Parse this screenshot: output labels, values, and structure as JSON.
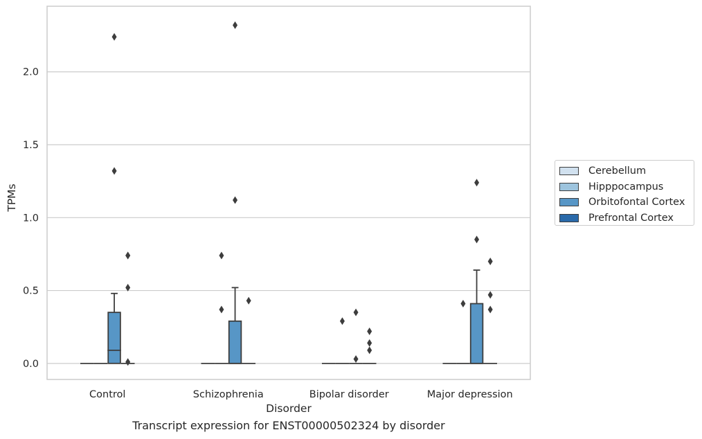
{
  "chart_data": {
    "type": "box",
    "title": "",
    "caption": "Transcript expression for ENST00000502324 by disorder",
    "xlabel": "Disorder",
    "ylabel": "TPMs",
    "ylim": [
      -0.11,
      2.45
    ],
    "yticks": [
      0.0,
      0.5,
      1.0,
      1.5,
      2.0
    ],
    "ytick_labels": [
      "0.0",
      "0.5",
      "1.0",
      "1.5",
      "2.0"
    ],
    "grid": "horizontal",
    "legend_position": "right",
    "categories": [
      "Control",
      "Schizophrenia",
      "Bipolar disorder",
      "Major depression"
    ],
    "series": [
      {
        "name": "Cerebellum",
        "color": "#d1e1ef",
        "boxes": [
          {
            "category": "Control",
            "min": 0,
            "q1": 0,
            "median": 0,
            "q3": 0,
            "max": 0,
            "outliers": []
          },
          {
            "category": "Schizophrenia",
            "min": 0,
            "q1": 0,
            "median": 0,
            "q3": 0,
            "max": 0,
            "outliers": []
          },
          {
            "category": "Bipolar disorder",
            "min": 0,
            "q1": 0,
            "median": 0,
            "q3": 0,
            "max": 0,
            "outliers": []
          },
          {
            "category": "Major depression",
            "min": 0,
            "q1": 0,
            "median": 0,
            "q3": 0,
            "max": 0,
            "outliers": []
          }
        ]
      },
      {
        "name": "Hipppocampus",
        "color": "#9dc4de",
        "boxes": [
          {
            "category": "Control",
            "min": 0,
            "q1": 0,
            "median": 0,
            "q3": 0,
            "max": 0,
            "outliers": []
          },
          {
            "category": "Schizophrenia",
            "min": 0,
            "q1": 0,
            "median": 0,
            "q3": 0,
            "max": 0,
            "outliers": []
          },
          {
            "category": "Bipolar disorder",
            "min": 0,
            "q1": 0,
            "median": 0,
            "q3": 0,
            "max": 0,
            "outliers": [
              0.29
            ]
          },
          {
            "category": "Major depression",
            "min": 0,
            "q1": 0,
            "median": 0,
            "q3": 0,
            "max": 0,
            "outliers": [
              0.41
            ]
          }
        ]
      },
      {
        "name": "Orbitofontal Cortex",
        "color": "#5796c6",
        "boxes": [
          {
            "category": "Control",
            "min": 0,
            "q1": 0,
            "median": 0.09,
            "q3": 0.35,
            "max": 0.48,
            "outliers": [
              1.32,
              2.24
            ]
          },
          {
            "category": "Schizophrenia",
            "min": 0,
            "q1": 0,
            "median": 0,
            "q3": 0.29,
            "max": 0.52,
            "outliers": [
              1.12,
              2.32
            ]
          },
          {
            "category": "Bipolar disorder",
            "min": 0,
            "q1": 0,
            "median": 0,
            "q3": 0,
            "max": 0,
            "outliers": [
              0.03,
              0.35
            ]
          },
          {
            "category": "Major depression",
            "min": 0,
            "q1": 0,
            "median": 0,
            "q3": 0.41,
            "max": 0.64,
            "outliers": [
              0.85,
              1.24
            ]
          }
        ]
      },
      {
        "name": "Prefrontal Cortex",
        "color": "#2a6aaa",
        "boxes": [
          {
            "category": "Control",
            "min": 0,
            "q1": 0,
            "median": 0,
            "q3": 0,
            "max": 0,
            "outliers": [
              0.01,
              0.52,
              0.74
            ]
          },
          {
            "category": "Schizophrenia",
            "min": 0,
            "q1": 0,
            "median": 0,
            "q3": 0,
            "max": 0,
            "outliers": [
              0.43
            ]
          },
          {
            "category": "Bipolar disorder",
            "min": 0,
            "q1": 0,
            "median": 0,
            "q3": 0,
            "max": 0,
            "outliers": [
              0.09,
              0.14,
              0.22
            ]
          },
          {
            "category": "Major depression",
            "min": 0,
            "q1": 0,
            "median": 0,
            "q3": 0,
            "max": 0,
            "outliers": [
              0.37,
              0.47,
              0.7
            ]
          }
        ]
      }
    ],
    "extra_outliers": [
      {
        "category": "Control",
        "series": "Orbitofontal Cortex",
        "value": 0.74,
        "group": "Prefrontal Cortex"
      },
      {
        "category": "Schizophrenia",
        "series": "Hipppocampus",
        "value": 0.37
      },
      {
        "category": "Schizophrenia",
        "series": "Hipppocampus",
        "value": 0.74
      }
    ],
    "style": {
      "line_color": "#3d3d3d",
      "grid_color": "#cccccc",
      "frame_color": "#cccccc"
    }
  }
}
